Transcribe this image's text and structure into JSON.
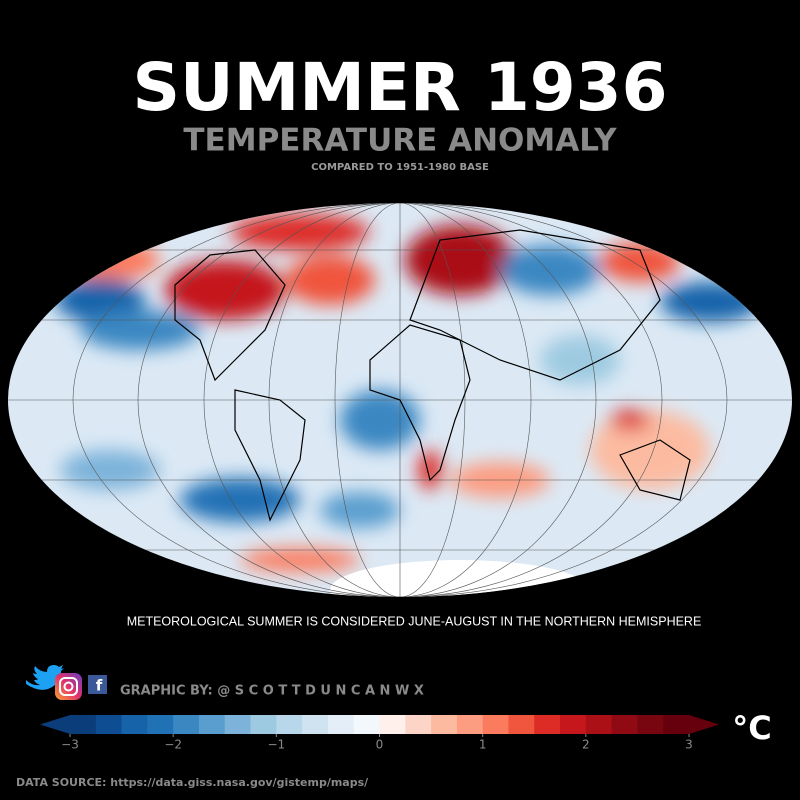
{
  "header": {
    "title": "SUMMER 1936",
    "subtitle": "TEMPERATURE ANOMALY",
    "baseline": "COMPARED TO 1951-1980 BASE"
  },
  "note": "METEOROLOGICAL SUMMER IS CONSIDERED JUNE-AUGUST IN THE NORTHERN HEMISPHERE",
  "credit": "GRAPHIC BY: @ S C O T T D U N C A N W X",
  "colorbar": {
    "lim": [
      -3,
      3
    ],
    "ticks": [
      {
        "value": -3,
        "label": "−3"
      },
      {
        "value": -2,
        "label": "−2"
      },
      {
        "value": -1,
        "label": "−1"
      },
      0,
      1,
      2,
      3
    ],
    "unit": "°C",
    "colors": [
      "#0a3d7a",
      "#0f4d92",
      "#1763aa",
      "#2171b5",
      "#3a87c2",
      "#5a9ecf",
      "#7db3da",
      "#9ecae1",
      "#b8d7ea",
      "#cfe3f1",
      "#e3eef8",
      "#f3f8fd",
      "#fff0eb",
      "#fdd5c8",
      "#fcbba1",
      "#fc9d82",
      "#fb7b5f",
      "#f0553d",
      "#dd2b25",
      "#c5171c",
      "#aa1016",
      "#8f0a12",
      "#780610",
      "#67000d"
    ]
  },
  "source": "DATA SOURCE: https://data.giss.nasa.gov/gistemp/maps/"
}
